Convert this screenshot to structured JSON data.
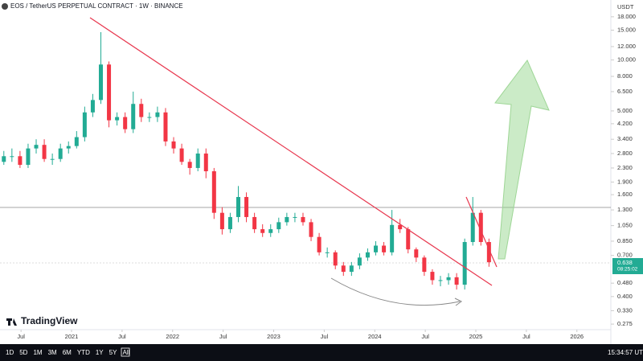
{
  "chart_data": {
    "type": "candlestick",
    "title": "EOS / TetherUS PERPETUAL CONTRACT · 1W · BINANCE",
    "currency": "USDT",
    "log_scale": true,
    "x": [
      2020.33,
      2020.41,
      2020.49,
      2020.57,
      2020.65,
      2020.73,
      2020.81,
      2020.89,
      2020.97,
      2021.05,
      2021.13,
      2021.21,
      2021.29,
      2021.37,
      2021.45,
      2021.53,
      2021.61,
      2021.69,
      2021.77,
      2021.85,
      2021.93,
      2022.01,
      2022.09,
      2022.17,
      2022.25,
      2022.33,
      2022.41,
      2022.49,
      2022.57,
      2022.65,
      2022.73,
      2022.81,
      2022.89,
      2022.97,
      2023.05,
      2023.13,
      2023.21,
      2023.29,
      2023.37,
      2023.45,
      2023.53,
      2023.61,
      2023.69,
      2023.77,
      2023.85,
      2023.93,
      2024.01,
      2024.09,
      2024.17,
      2024.25,
      2024.33,
      2024.41,
      2024.49,
      2024.57,
      2024.65,
      2024.73,
      2024.81,
      2024.89,
      2024.97,
      2025.05,
      2025.13
    ],
    "open": [
      2.5,
      2.7,
      2.7,
      2.4,
      3.0,
      3.15,
      2.6,
      2.6,
      3.0,
      3.1,
      3.5,
      4.9,
      5.8,
      9.4,
      4.4,
      4.6,
      3.9,
      5.5,
      4.6,
      4.6,
      4.9,
      3.3,
      3.0,
      2.5,
      2.3,
      2.8,
      2.2,
      1.25,
      1.0,
      1.18,
      1.55,
      1.18,
      1.0,
      0.95,
      1.0,
      1.1,
      1.18,
      1.18,
      1.1,
      0.9,
      0.73,
      0.73,
      0.61,
      0.56,
      0.61,
      0.68,
      0.73,
      0.8,
      0.73,
      1.06,
      1.0,
      0.76,
      0.68,
      0.56,
      0.5,
      0.5,
      0.52,
      0.47,
      0.84,
      1.25,
      0.84
    ],
    "high": [
      2.9,
      3.0,
      2.9,
      3.2,
      3.4,
      3.4,
      2.8,
      3.2,
      3.3,
      3.8,
      5.3,
      6.3,
      14.6,
      9.8,
      4.9,
      4.9,
      6.5,
      5.9,
      4.9,
      5.3,
      5.2,
      3.5,
      3.2,
      2.6,
      3.0,
      3.0,
      2.3,
      1.35,
      1.25,
      1.8,
      1.65,
      1.25,
      1.07,
      1.07,
      1.17,
      1.25,
      1.25,
      1.25,
      1.15,
      0.95,
      0.78,
      0.75,
      0.64,
      0.64,
      0.72,
      0.77,
      0.85,
      0.84,
      1.3,
      1.15,
      1.03,
      0.78,
      0.7,
      0.58,
      0.53,
      0.55,
      0.55,
      0.88,
      1.55,
      1.3,
      0.88
    ],
    "low": [
      2.4,
      2.5,
      2.3,
      2.3,
      2.8,
      2.5,
      2.4,
      2.5,
      2.8,
      3.0,
      3.3,
      4.6,
      5.5,
      4.0,
      4.1,
      3.7,
      3.7,
      4.3,
      4.3,
      4.3,
      3.1,
      2.8,
      2.4,
      2.1,
      2.2,
      2.0,
      1.15,
      0.93,
      0.95,
      1.1,
      1.1,
      0.95,
      0.9,
      0.9,
      0.95,
      1.05,
      1.1,
      1.05,
      0.85,
      0.7,
      0.68,
      0.58,
      0.53,
      0.53,
      0.58,
      0.65,
      0.7,
      0.7,
      0.7,
      0.95,
      0.72,
      0.64,
      0.53,
      0.47,
      0.46,
      0.47,
      0.44,
      0.44,
      0.8,
      0.8,
      0.6
    ],
    "close": [
      2.7,
      2.7,
      2.4,
      3.0,
      3.15,
      2.6,
      2.6,
      3.0,
      3.1,
      3.5,
      4.9,
      5.8,
      9.4,
      4.4,
      4.6,
      3.9,
      5.5,
      4.6,
      4.6,
      4.9,
      3.3,
      3.0,
      2.5,
      2.3,
      2.8,
      2.2,
      1.25,
      1.0,
      1.18,
      1.55,
      1.18,
      1.0,
      0.95,
      1.0,
      1.1,
      1.18,
      1.18,
      1.1,
      0.9,
      0.73,
      0.73,
      0.61,
      0.56,
      0.61,
      0.68,
      0.73,
      0.8,
      0.73,
      1.06,
      1.0,
      0.76,
      0.68,
      0.56,
      0.5,
      0.5,
      0.52,
      0.47,
      0.84,
      1.25,
      0.84,
      0.638
    ],
    "up_color": "#22ab94",
    "down_color": "#f23645",
    "xlim": [
      2020.292,
      2026.336
    ],
    "xticks": [
      {
        "value": 2020.5,
        "label": "Jul"
      },
      2021,
      {
        "value": 2021.5,
        "label": "Jul"
      },
      2022,
      {
        "value": 2022.5,
        "label": "Jul"
      },
      2023,
      {
        "value": 2023.5,
        "label": "Jul"
      },
      2024,
      {
        "value": 2024.5,
        "label": "Jul"
      },
      2025,
      {
        "value": 2025.5,
        "label": "Jul"
      },
      2026
    ],
    "ylim": [
      0.255,
      19.4
    ],
    "yticks": [
      {
        "value": 18,
        "label": "18.000"
      },
      {
        "value": 15,
        "label": "15.000"
      },
      {
        "value": 12,
        "label": "12.000"
      },
      {
        "value": 10,
        "label": "10.000"
      },
      {
        "value": 8,
        "label": "8.000"
      },
      {
        "value": 6.5,
        "label": "6.500"
      },
      {
        "value": 5,
        "label": "5.000"
      },
      {
        "value": 4.2,
        "label": "4.200"
      },
      {
        "value": 3.4,
        "label": "3.400"
      },
      {
        "value": 2.8,
        "label": "2.800"
      },
      {
        "value": 2.3,
        "label": "2.300"
      },
      {
        "value": 1.9,
        "label": "1.900"
      },
      {
        "value": 1.6,
        "label": "1.600"
      },
      {
        "value": 1.3,
        "label": "1.300"
      },
      {
        "value": 1.05,
        "label": "1.050"
      },
      {
        "value": 0.85,
        "label": "0.850"
      },
      {
        "value": 0.7,
        "label": "0.700"
      },
      {
        "value": 0.48,
        "label": "0.480"
      },
      {
        "value": 0.4,
        "label": "0.400"
      },
      {
        "value": 0.33,
        "label": "0.330"
      },
      {
        "value": 0.275,
        "label": "0.275"
      }
    ],
    "last_price": 0.638,
    "countdown": "08:25:02",
    "brand": "TradingView",
    "ranges": [
      "1D",
      "5D",
      "1M",
      "3M",
      "6M",
      "YTD",
      "1Y",
      "5Y",
      "All"
    ],
    "clock": "15:34:57 UTC"
  }
}
